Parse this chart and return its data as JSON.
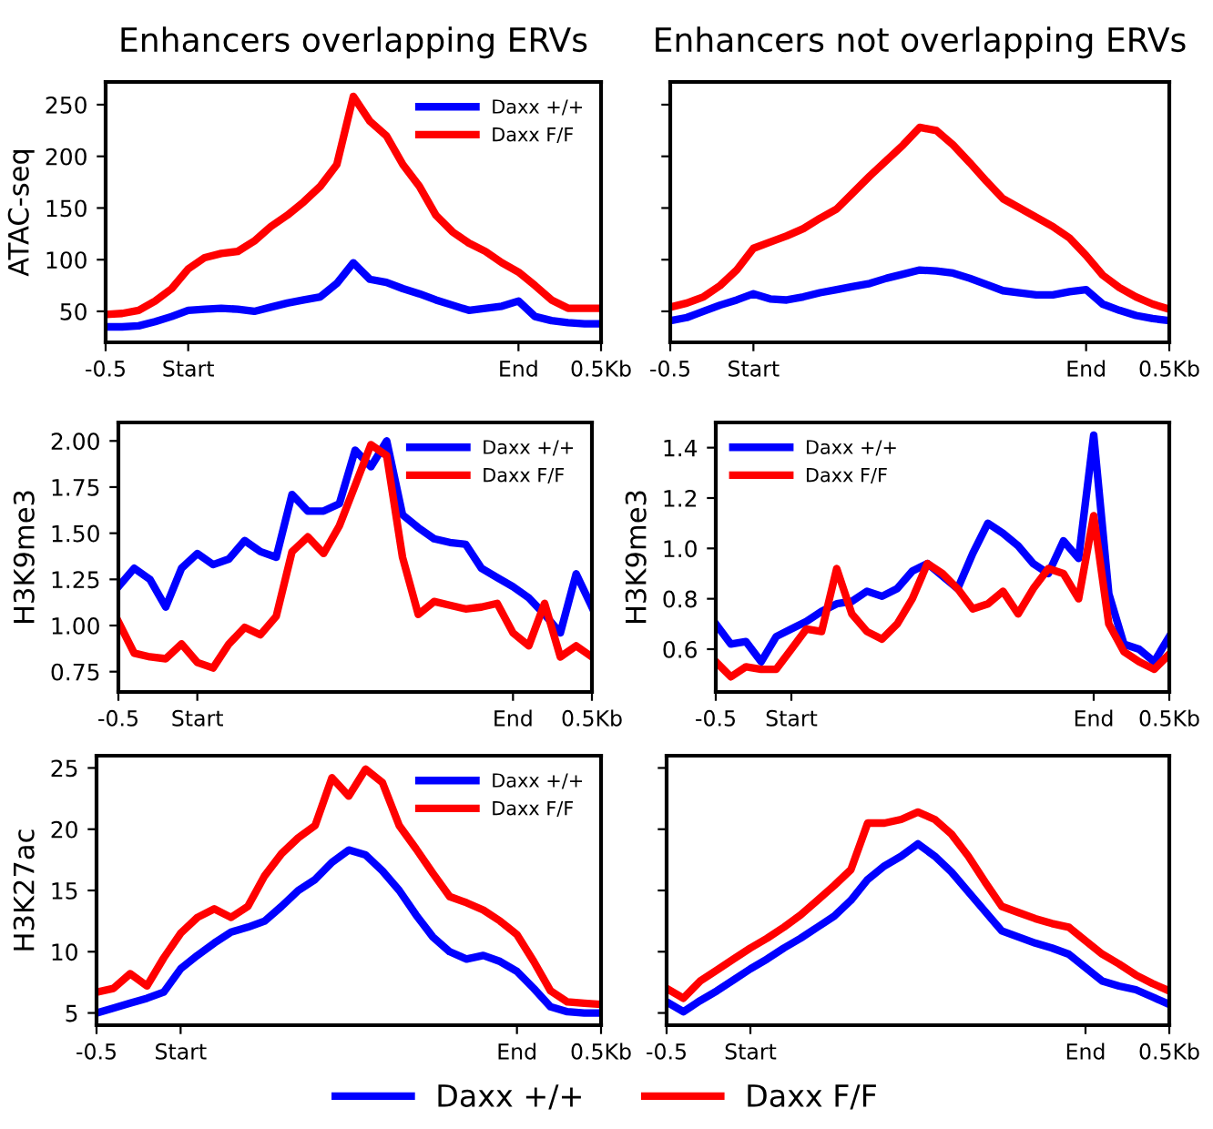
{
  "chart_data": [
    {
      "type": "line",
      "title": "Enhancers overlapping ERVs",
      "ylabel": "ATAC-seq",
      "categories": [
        "-0.5",
        null,
        null,
        null,
        null,
        "Start",
        null,
        null,
        null,
        null,
        null,
        null,
        null,
        null,
        null,
        null,
        null,
        null,
        null,
        null,
        null,
        null,
        null,
        null,
        null,
        "End",
        null,
        null,
        null,
        null,
        "0.5Kb"
      ],
      "ylim": [
        20,
        272
      ],
      "yticks": [
        50,
        100,
        150,
        200,
        250
      ],
      "legend": "top right",
      "series": [
        {
          "name": "Daxx +/+",
          "color": "#0000ff",
          "values": [
            35,
            35,
            36,
            40,
            45,
            51,
            52,
            53,
            52,
            50,
            54,
            58,
            61,
            64,
            77,
            97,
            81,
            78,
            72,
            67,
            61,
            56,
            51,
            53,
            55,
            60,
            45,
            41,
            39,
            38,
            38
          ]
        },
        {
          "name": "Daxx F/F",
          "color": "#ff0000",
          "values": [
            47,
            48,
            51,
            60,
            72,
            91,
            102,
            106,
            108,
            118,
            132,
            143,
            156,
            171,
            192,
            258,
            234,
            220,
            192,
            171,
            143,
            127,
            116,
            108,
            97,
            88,
            75,
            61,
            53,
            53,
            53
          ]
        }
      ]
    },
    {
      "type": "line",
      "title": "Enhancers not overlapping ERVs",
      "categories": [
        "-0.5",
        null,
        null,
        null,
        null,
        "Start",
        null,
        null,
        null,
        null,
        null,
        null,
        null,
        null,
        null,
        null,
        null,
        null,
        null,
        null,
        null,
        null,
        null,
        null,
        null,
        "End",
        null,
        null,
        null,
        null,
        "0.5Kb"
      ],
      "ylim": [
        20,
        272
      ],
      "yticks": [
        50,
        100,
        150,
        200,
        250
      ],
      "tick_labels": "x",
      "series": [
        {
          "color": "#0000ff",
          "values": [
            41,
            44,
            50,
            56,
            61,
            67,
            62,
            61,
            64,
            68,
            71,
            74,
            77,
            82,
            86,
            90,
            89,
            87,
            82,
            76,
            70,
            68,
            66,
            66,
            69,
            71,
            57,
            51,
            46,
            43,
            41
          ]
        },
        {
          "color": "#ff0000",
          "values": [
            54,
            58,
            64,
            75,
            90,
            111,
            117,
            123,
            130,
            140,
            149,
            165,
            181,
            196,
            211,
            228,
            225,
            211,
            194,
            176,
            159,
            150,
            141,
            132,
            121,
            104,
            85,
            73,
            64,
            57,
            52
          ]
        }
      ]
    },
    {
      "type": "line",
      "ylabel": "H3K9me3",
      "categories": [
        "-0.5",
        null,
        null,
        null,
        null,
        "Start",
        null,
        null,
        null,
        null,
        null,
        null,
        null,
        null,
        null,
        null,
        null,
        null,
        null,
        null,
        null,
        null,
        null,
        null,
        null,
        "End",
        null,
        null,
        null,
        null,
        "0.5Kb"
      ],
      "ylim": [
        0.64,
        2.1
      ],
      "yticks": [
        {
          "value": 0.75,
          "label": "0.75"
        },
        {
          "value": 1.0,
          "label": "1.00"
        },
        {
          "value": 1.25,
          "label": "1.25"
        },
        {
          "value": 1.5,
          "label": "1.50"
        },
        {
          "value": 1.75,
          "label": "1.75"
        },
        {
          "value": 2.0,
          "label": "2.00"
        }
      ],
      "legend": "top right",
      "series": [
        {
          "name": "Daxx +/+",
          "color": "#0000ff",
          "values": [
            1.21,
            1.31,
            1.25,
            1.1,
            1.31,
            1.39,
            1.33,
            1.36,
            1.46,
            1.4,
            1.37,
            1.71,
            1.62,
            1.62,
            1.66,
            1.95,
            1.86,
            2.0,
            1.6,
            1.53,
            1.47,
            1.45,
            1.44,
            1.31,
            1.26,
            1.21,
            1.15,
            1.06,
            0.96,
            1.28,
            1.1
          ]
        },
        {
          "name": "Daxx F/F",
          "color": "#ff0000",
          "values": [
            1.02,
            0.85,
            0.83,
            0.82,
            0.9,
            0.8,
            0.77,
            0.9,
            0.99,
            0.95,
            1.05,
            1.4,
            1.48,
            1.39,
            1.54,
            1.76,
            1.98,
            1.92,
            1.37,
            1.06,
            1.13,
            1.11,
            1.09,
            1.1,
            1.12,
            0.96,
            0.89,
            1.12,
            0.83,
            0.89,
            0.83
          ]
        }
      ]
    },
    {
      "type": "line",
      "ylabel": "H3K9me3",
      "categories": [
        "-0.5",
        null,
        null,
        null,
        null,
        "Start",
        null,
        null,
        null,
        null,
        null,
        null,
        null,
        null,
        null,
        null,
        null,
        null,
        null,
        null,
        null,
        null,
        null,
        null,
        null,
        "End",
        null,
        null,
        null,
        null,
        "0.5Kb"
      ],
      "ylim": [
        0.43,
        1.5
      ],
      "yticks": [
        0.6,
        0.8,
        {
          "value": 1.0,
          "label": "1.0"
        },
        1.2,
        1.4
      ],
      "legend": "top left",
      "series": [
        {
          "name": "Daxx +/+",
          "color": "#0000ff",
          "values": [
            0.7,
            0.62,
            0.63,
            0.55,
            0.65,
            0.68,
            0.71,
            0.75,
            0.78,
            0.79,
            0.83,
            0.81,
            0.84,
            0.91,
            0.94,
            0.89,
            0.84,
            0.98,
            1.1,
            1.06,
            1.01,
            0.94,
            0.9,
            1.03,
            0.96,
            1.45,
            0.82,
            0.62,
            0.6,
            0.55,
            0.65
          ]
        },
        {
          "name": "Daxx F/F",
          "color": "#ff0000",
          "values": [
            0.55,
            0.49,
            0.53,
            0.52,
            0.52,
            0.6,
            0.68,
            0.67,
            0.92,
            0.74,
            0.67,
            0.64,
            0.7,
            0.8,
            0.94,
            0.9,
            0.84,
            0.76,
            0.78,
            0.83,
            0.74,
            0.84,
            0.92,
            0.9,
            0.8,
            1.13,
            0.7,
            0.59,
            0.55,
            0.52,
            0.58
          ]
        }
      ]
    },
    {
      "type": "line",
      "ylabel": "H3K27ac",
      "categories": [
        "-0.5",
        null,
        null,
        null,
        null,
        "Start",
        null,
        null,
        null,
        null,
        null,
        null,
        null,
        null,
        null,
        null,
        null,
        null,
        null,
        null,
        null,
        null,
        null,
        null,
        null,
        "End",
        null,
        null,
        null,
        null,
        "0.5Kb"
      ],
      "ylim": [
        4,
        26
      ],
      "yticks": [
        5,
        10,
        15,
        20,
        25
      ],
      "legend": "top right",
      "series": [
        {
          "name": "Daxx +/+",
          "color": "#0000ff",
          "values": [
            5.0,
            5.4,
            5.8,
            6.2,
            6.7,
            8.6,
            9.7,
            10.7,
            11.6,
            12.0,
            12.5,
            13.7,
            15.0,
            15.9,
            17.3,
            18.3,
            17.9,
            16.6,
            15.0,
            13.0,
            11.2,
            10.0,
            9.4,
            9.7,
            9.2,
            8.4,
            7.0,
            5.5,
            5.1,
            5.0,
            5.0
          ]
        },
        {
          "name": "Daxx F/F",
          "color": "#ff0000",
          "values": [
            6.7,
            7.0,
            8.2,
            7.2,
            9.5,
            11.5,
            12.8,
            13.5,
            12.8,
            13.7,
            16.2,
            18.0,
            19.3,
            20.3,
            24.2,
            22.7,
            24.9,
            23.8,
            20.3,
            18.4,
            16.4,
            14.5,
            14.0,
            13.4,
            12.5,
            11.4,
            9.2,
            6.8,
            5.9,
            5.8,
            5.7
          ]
        }
      ]
    },
    {
      "type": "line",
      "categories": [
        "-0.5",
        null,
        null,
        null,
        null,
        "Start",
        null,
        null,
        null,
        null,
        null,
        null,
        null,
        null,
        null,
        null,
        null,
        null,
        null,
        null,
        null,
        null,
        null,
        null,
        null,
        "End",
        null,
        null,
        null,
        null,
        "0.5Kb"
      ],
      "ylim": [
        4,
        26
      ],
      "yticks": [
        5,
        10,
        15,
        20,
        25
      ],
      "tick_labels": "x",
      "legend": "bottom",
      "series": [
        {
          "name": "Daxx +/+",
          "color": "#0000ff",
          "values": [
            5.9,
            5.1,
            6.0,
            6.8,
            7.7,
            8.6,
            9.4,
            10.3,
            11.1,
            12.0,
            12.9,
            14.2,
            15.9,
            17.0,
            17.8,
            18.8,
            17.8,
            16.5,
            14.9,
            13.3,
            11.7,
            11.2,
            10.7,
            10.3,
            9.8,
            8.7,
            7.6,
            7.2,
            6.9,
            6.3,
            5.7
          ]
        },
        {
          "name": "Daxx F/F",
          "color": "#ff0000",
          "values": [
            7.0,
            6.2,
            7.6,
            8.5,
            9.4,
            10.3,
            11.1,
            12.0,
            13.0,
            14.2,
            15.4,
            16.7,
            20.5,
            20.5,
            20.8,
            21.4,
            20.8,
            19.6,
            17.8,
            15.7,
            13.7,
            13.2,
            12.7,
            12.3,
            12.0,
            10.9,
            9.8,
            9.0,
            8.1,
            7.4,
            6.8
          ]
        }
      ]
    }
  ]
}
